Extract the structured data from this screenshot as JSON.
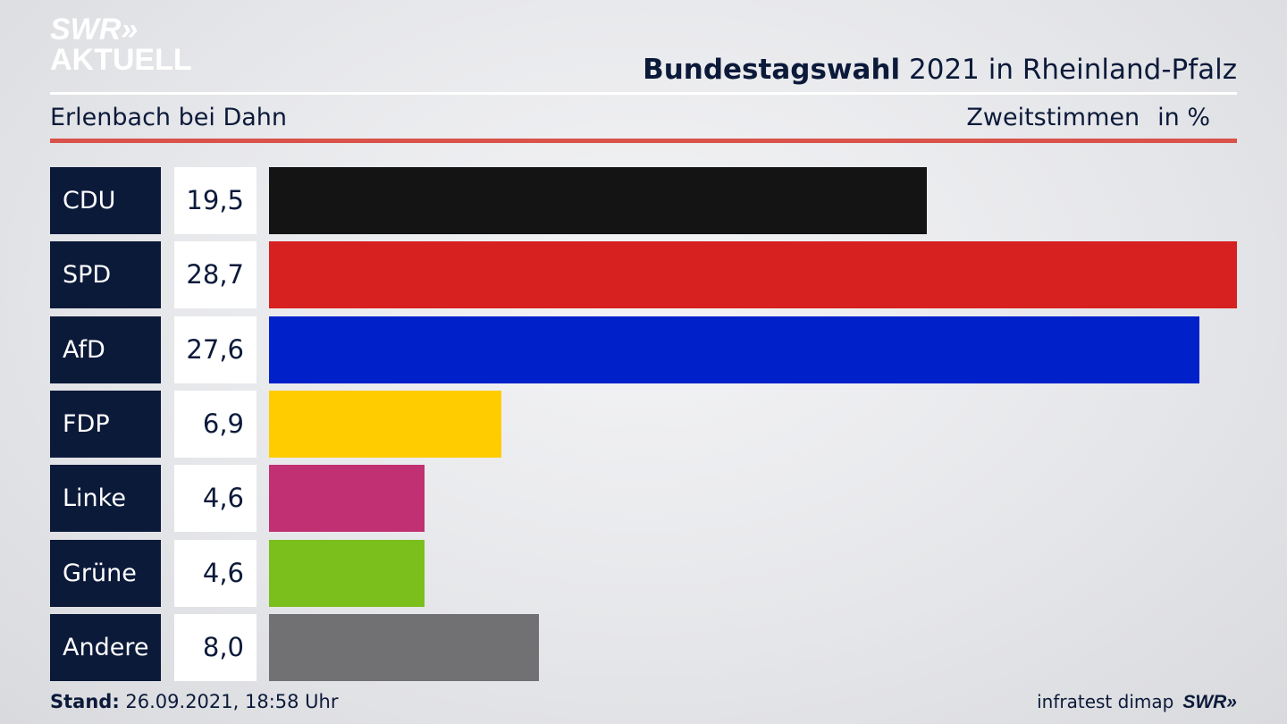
{
  "logo": {
    "line1": "SWR»",
    "line2": "AKTUELL"
  },
  "header": {
    "title_bold": "Bundestagswahl",
    "title_rest": " 2021 in Rheinland-Pfalz",
    "location": "Erlenbach bei Dahn",
    "metric": "Zweitstimmen",
    "unit": "in %"
  },
  "colors": {
    "navy": "#0c1a3a",
    "rule_red": "#d9534a"
  },
  "chart_data": {
    "type": "bar",
    "orientation": "horizontal",
    "title": "Bundestagswahl 2021 in Rheinland-Pfalz",
    "subtitle": "Erlenbach bei Dahn",
    "ylabel": "Zweitstimmen in %",
    "categories": [
      "CDU",
      "SPD",
      "AfD",
      "FDP",
      "Linke",
      "Grüne",
      "Andere"
    ],
    "values": [
      19.5,
      28.7,
      27.6,
      6.9,
      4.6,
      4.6,
      8.0
    ],
    "value_labels": [
      "19,5",
      "28,7",
      "27,6",
      "6,9",
      "4,6",
      "4,6",
      "8,0"
    ],
    "colors": [
      "#141414",
      "#d72020",
      "#0021c9",
      "#ffcc00",
      "#c03073",
      "#7bbf1c",
      "#717173"
    ],
    "xlim": [
      0,
      28.7
    ]
  },
  "footer": {
    "stand_label": "Stand:",
    "stand_value": " 26.09.2021, 18:58 Uhr",
    "source": "infratest dimap",
    "brand": "SWR»"
  }
}
